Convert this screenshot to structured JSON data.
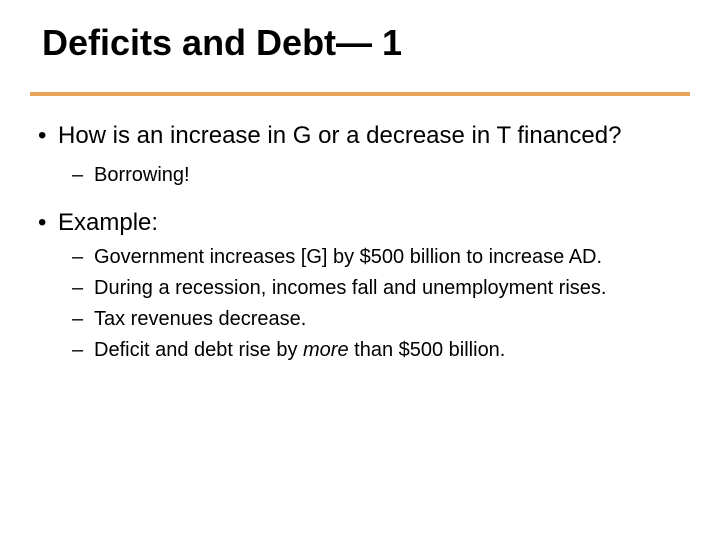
{
  "colors": {
    "rule": "#e9a35a",
    "text": "#000000",
    "background": "#ffffff"
  },
  "title": "Deficits and Debt— 1",
  "bullets": {
    "b1": "How is an increase in G or a decrease in T financed?",
    "b1_sub1": "Borrowing!",
    "b2": "Example:",
    "b2_sub1": "Government increases [G] by $500 billion to increase AD.",
    "b2_sub2": "During a recession, incomes fall and unemployment rises.",
    "b2_sub3": "Tax revenues decrease.",
    "b2_sub4_prefix": "Deficit and debt rise by ",
    "b2_sub4_em": "more",
    "b2_sub4_suffix": " than $500 billion."
  },
  "typography": {
    "title_fontsize": 36,
    "body_fontsize": 24,
    "sub_fontsize": 20
  }
}
